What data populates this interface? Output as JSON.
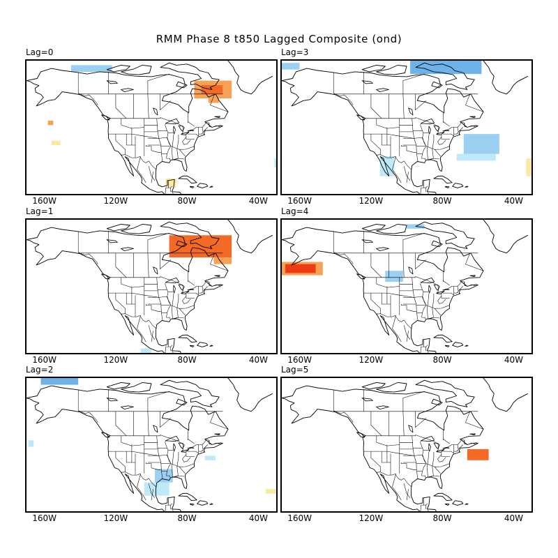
{
  "title": "RMM Phase 8 t850 Lagged Composite (ond)",
  "x_tick_labels": [
    "160W",
    "120W",
    "80W",
    "40W"
  ],
  "x_tick_longitudes": [
    -160,
    -120,
    -80,
    -40
  ],
  "map_extent": {
    "lon": [
      -170,
      -30
    ],
    "lat": [
      15,
      75
    ]
  },
  "colors": {
    "weak_negative": "#bfe8f8",
    "moderate_negative": "#9cd0f2",
    "strong_negative": "#6fb2e8",
    "weak_positive": "#fbe7a6",
    "moderate_positive": "#f6a256",
    "strong_positive": "#f26a25",
    "very_strong_positive": "#ee3b16"
  },
  "panels": [
    {
      "label": "Lag=0",
      "anomalies": [
        {
          "kind": "moderate_negative",
          "lon": [
            -145,
            -122
          ],
          "lat": [
            70,
            73
          ]
        },
        {
          "kind": "moderate_positive",
          "lon": [
            -76,
            -55
          ],
          "lat": [
            58,
            66
          ]
        },
        {
          "kind": "strong_positive",
          "lon": [
            -72,
            -60
          ],
          "lat": [
            60,
            64
          ]
        },
        {
          "kind": "moderate_positive",
          "lon": [
            -68,
            -62
          ],
          "lat": [
            56,
            58
          ]
        },
        {
          "kind": "moderate_positive",
          "lon": [
            -158,
            -155
          ],
          "lat": [
            46,
            48
          ]
        },
        {
          "kind": "weak_positive",
          "lon": [
            -156,
            -151
          ],
          "lat": [
            37,
            39
          ]
        },
        {
          "kind": "weak_positive",
          "lon": [
            -92,
            -86
          ],
          "lat": [
            18,
            22
          ]
        },
        {
          "kind": "weak_negative",
          "lon": [
            -31,
            -30
          ],
          "lat": [
            27,
            31
          ]
        }
      ]
    },
    {
      "label": "Lag=3",
      "anomalies": [
        {
          "kind": "moderate_negative",
          "lon": [
            -170,
            -160
          ],
          "lat": [
            71,
            74
          ]
        },
        {
          "kind": "strong_negative",
          "lon": [
            -98,
            -58
          ],
          "lat": [
            69,
            75
          ]
        },
        {
          "kind": "moderate_negative",
          "lon": [
            -68,
            -48
          ],
          "lat": [
            33,
            42
          ]
        },
        {
          "kind": "weak_negative",
          "lon": [
            -72,
            -50
          ],
          "lat": [
            30,
            33
          ]
        },
        {
          "kind": "weak_negative",
          "lon": [
            -115,
            -107
          ],
          "lat": [
            23,
            32
          ]
        },
        {
          "kind": "weak_positive",
          "lon": [
            -33,
            -30
          ],
          "lat": [
            23,
            31
          ]
        }
      ]
    },
    {
      "label": "Lag=1",
      "anomalies": [
        {
          "kind": "strong_positive",
          "lon": [
            -90,
            -55
          ],
          "lat": [
            58,
            68
          ]
        },
        {
          "kind": "moderate_positive",
          "lon": [
            -65,
            -55
          ],
          "lat": [
            55,
            58
          ]
        },
        {
          "kind": "weak_negative",
          "lon": [
            -106,
            -100
          ],
          "lat": [
            15,
            17
          ]
        }
      ]
    },
    {
      "label": "Lag=4",
      "anomalies": [
        {
          "kind": "moderate_negative",
          "lon": [
            -100,
            -90
          ],
          "lat": [
            71,
            73
          ]
        },
        {
          "kind": "moderate_positive",
          "lon": [
            -170,
            -147
          ],
          "lat": [
            50,
            56
          ]
        },
        {
          "kind": "very_strong_positive",
          "lon": [
            -168,
            -151
          ],
          "lat": [
            51,
            55
          ]
        },
        {
          "kind": "moderate_negative",
          "lon": [
            -112,
            -102
          ],
          "lat": [
            47,
            52
          ]
        }
      ]
    },
    {
      "label": "Lag=2",
      "anomalies": [
        {
          "kind": "strong_negative",
          "lon": [
            -162,
            -141
          ],
          "lat": [
            72,
            75
          ]
        },
        {
          "kind": "weak_negative",
          "lon": [
            -169,
            -166
          ],
          "lat": [
            44,
            47
          ]
        },
        {
          "kind": "moderate_negative",
          "lon": [
            -98,
            -88
          ],
          "lat": [
            28,
            34
          ]
        },
        {
          "kind": "weak_negative",
          "lon": [
            -104,
            -90
          ],
          "lat": [
            22,
            28
          ]
        },
        {
          "kind": "weak_negative",
          "lon": [
            -70,
            -64
          ],
          "lat": [
            38,
            40
          ]
        },
        {
          "kind": "weak_positive",
          "lon": [
            -36,
            -30
          ],
          "lat": [
            23,
            25
          ]
        }
      ]
    },
    {
      "label": "Lag=5",
      "anomalies": [
        {
          "kind": "strong_positive",
          "lon": [
            -66,
            -54
          ],
          "lat": [
            38,
            43
          ]
        }
      ]
    }
  ]
}
